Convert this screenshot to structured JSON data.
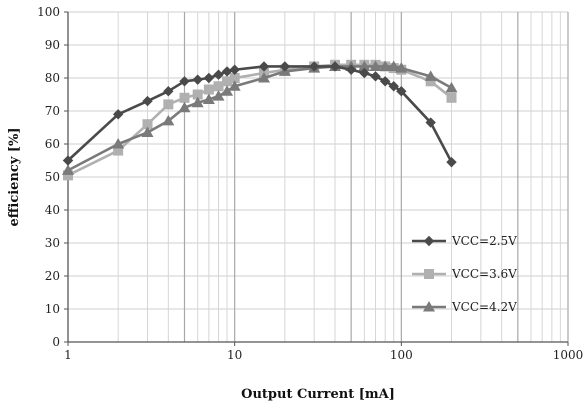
{
  "chart_data": {
    "type": "line",
    "title": "",
    "xlabel": "Output Current [mA]",
    "ylabel": "efficiency [%]",
    "x_scale": "log",
    "xlim": [
      1,
      1000
    ],
    "ylim": [
      0,
      100
    ],
    "y_ticks": [
      0,
      10,
      20,
      30,
      40,
      50,
      60,
      70,
      80,
      90,
      100
    ],
    "x_ticks": [
      1,
      10,
      100,
      1000
    ],
    "x_tick_labels": [
      "1",
      "10",
      "100",
      "1000"
    ],
    "grid": true,
    "legend_position": "right",
    "series": [
      {
        "name": "VCC=2.5V",
        "color": "#4a4a4a",
        "marker": "diamond",
        "x": [
          1,
          2,
          3,
          4,
          5,
          6,
          7,
          8,
          9,
          10,
          15,
          20,
          30,
          40,
          50,
          60,
          70,
          80,
          90,
          100,
          150,
          200
        ],
        "y": [
          55,
          69,
          73,
          76,
          79,
          79.5,
          80,
          81,
          82,
          82.5,
          83.5,
          83.5,
          83.5,
          83.5,
          82.5,
          81.5,
          80.5,
          79,
          77.5,
          76,
          66.5,
          54.5
        ]
      },
      {
        "name": "VCC=3.6V",
        "color": "#b0b0b0",
        "marker": "square",
        "x": [
          1,
          2,
          3,
          4,
          5,
          6,
          7,
          8,
          9,
          10,
          15,
          20,
          30,
          40,
          50,
          60,
          70,
          80,
          90,
          100,
          150,
          200
        ],
        "y": [
          50.5,
          58,
          66,
          72,
          74,
          75,
          76.5,
          77.5,
          79,
          80,
          81.5,
          82.5,
          83.5,
          84,
          84,
          84,
          84,
          83.5,
          83,
          82.5,
          79,
          74
        ]
      },
      {
        "name": "VCC=4.2V",
        "color": "#7a7a7a",
        "marker": "triangle",
        "x": [
          1,
          2,
          3,
          4,
          5,
          6,
          7,
          8,
          9,
          10,
          15,
          20,
          30,
          40,
          50,
          60,
          70,
          80,
          90,
          100,
          150,
          200
        ],
        "y": [
          52,
          60,
          63.5,
          67,
          71,
          72.5,
          73.5,
          74.5,
          76,
          77.5,
          80,
          82,
          83,
          83.5,
          83.5,
          83.5,
          83.5,
          83.5,
          83.5,
          83,
          80.5,
          77
        ]
      }
    ]
  }
}
